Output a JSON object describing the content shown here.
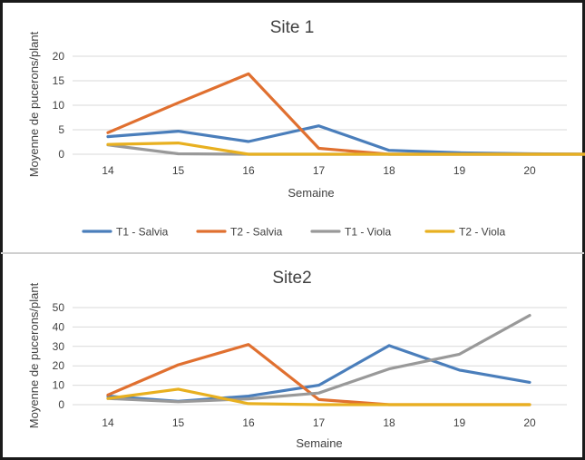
{
  "legend": [
    {
      "name": "T1 - Salvia",
      "color": "#4a7ebb"
    },
    {
      "name": "T2 - Salvia",
      "color": "#e07030"
    },
    {
      "name": "T1 - Viola",
      "color": "#999999"
    },
    {
      "name": "T2 - Viola",
      "color": "#e8b020"
    }
  ],
  "chart_data": [
    {
      "type": "line",
      "title": "Site 1",
      "xlabel": "Semaine",
      "ylabel": "Moyenne de pucerons/plant",
      "categories": [
        "14",
        "15",
        "16",
        "17",
        "18",
        "19",
        "20"
      ],
      "yticks": [
        0,
        5,
        10,
        15,
        20
      ],
      "ylim": [
        0,
        20
      ],
      "grid": true,
      "legend_position": "bottom",
      "series": [
        {
          "name": "T1 - Salvia",
          "color": "#4a7ebb",
          "x": [
            14,
            15,
            16,
            17,
            18,
            19,
            20,
            20.9
          ],
          "values": [
            3.6,
            4.7,
            2.6,
            5.8,
            0.8,
            0.3,
            0.1,
            0
          ]
        },
        {
          "name": "T2 - Salvia",
          "color": "#e07030",
          "x": [
            14,
            15,
            16,
            17,
            18,
            19,
            20,
            20.9
          ],
          "values": [
            4.4,
            10.5,
            16.4,
            1.2,
            0,
            0,
            0,
            0
          ]
        },
        {
          "name": "T1 - Viola",
          "color": "#999999",
          "x": [
            14,
            15,
            16,
            17,
            18,
            19,
            20,
            20.9
          ],
          "values": [
            1.9,
            0.1,
            0,
            0,
            0,
            0,
            0,
            0
          ]
        },
        {
          "name": "T2 - Viola",
          "color": "#e8b020",
          "x": [
            14,
            15,
            16,
            17,
            18,
            19,
            20,
            20.9
          ],
          "values": [
            2.0,
            2.3,
            0,
            0,
            0,
            0,
            0,
            0
          ]
        }
      ]
    },
    {
      "type": "line",
      "title": "Site2",
      "xlabel": "Semaine",
      "ylabel": "Moyenne de pucerons/plant",
      "categories": [
        "14",
        "15",
        "16",
        "17",
        "18",
        "19",
        "20"
      ],
      "yticks": [
        0,
        10,
        20,
        30,
        40,
        50
      ],
      "ylim": [
        0,
        50
      ],
      "grid": true,
      "series": [
        {
          "name": "T1 - Salvia",
          "color": "#4a7ebb",
          "x": [
            14,
            15,
            16,
            17,
            18,
            19,
            20
          ],
          "values": [
            4.4,
            1.7,
            4.4,
            10,
            30.4,
            17.8,
            11.5
          ]
        },
        {
          "name": "T2 - Salvia",
          "color": "#e07030",
          "x": [
            14,
            15,
            16,
            17,
            18,
            19,
            20
          ],
          "values": [
            5.0,
            20.5,
            31.0,
            2.6,
            0,
            0,
            0
          ]
        },
        {
          "name": "T1 - Viola",
          "color": "#999999",
          "x": [
            14,
            15,
            16,
            17,
            18,
            19,
            20
          ],
          "values": [
            3.2,
            1.5,
            3.0,
            6.0,
            18.4,
            26.0,
            46.0
          ]
        },
        {
          "name": "T2 - Viola",
          "color": "#e8b020",
          "x": [
            14,
            15,
            16,
            17,
            18,
            19,
            20
          ],
          "values": [
            3.2,
            8.0,
            0.5,
            0,
            0,
            0,
            0
          ]
        }
      ]
    }
  ]
}
